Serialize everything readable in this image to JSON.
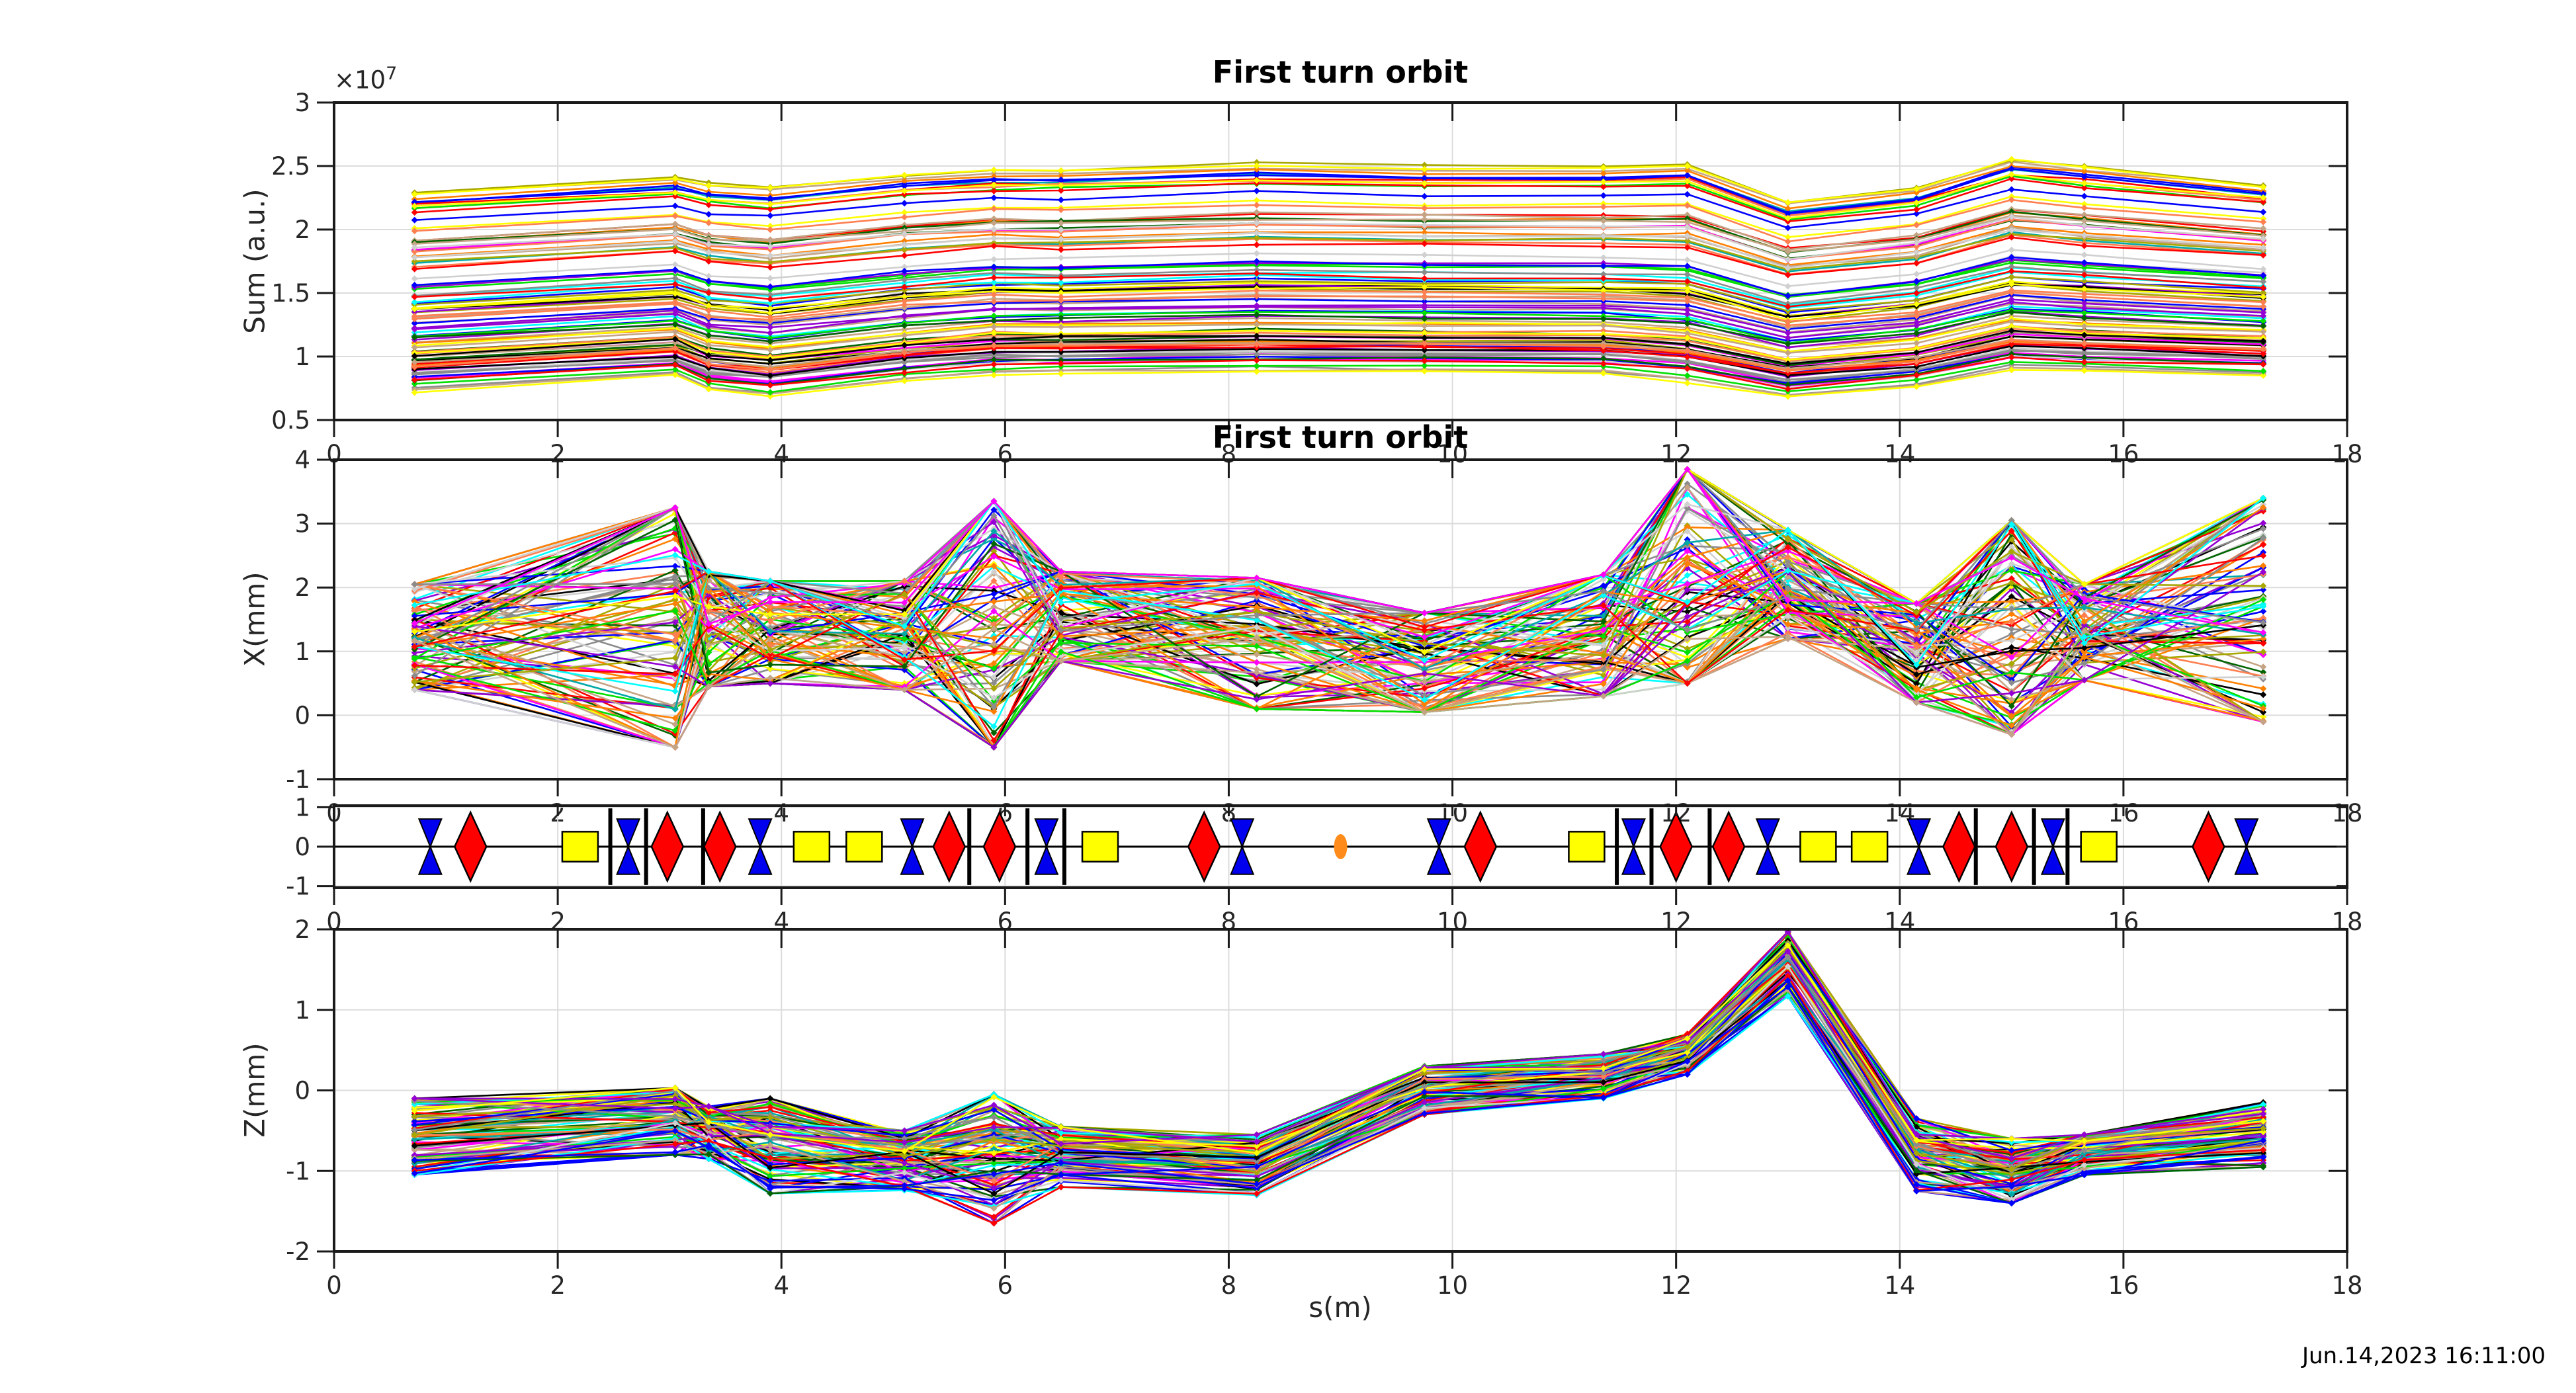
{
  "figure": {
    "background": "#ffffff",
    "timestamp": "Jun.14,2023 16:11:00",
    "text_color": "#262626",
    "palette": [
      "#0000ff",
      "#00e000",
      "#ff0000",
      "#00ffff",
      "#ff00ff",
      "#ffff00",
      "#000000",
      "#006400",
      "#a8a800",
      "#8c8c8c",
      "#c4a484",
      "#ff8000",
      "#9400d3",
      "#00a8a8",
      "#d0d0d0",
      "#ff7f50"
    ]
  },
  "chart_data": [
    {
      "id": "sum",
      "type": "line",
      "title": "First turn orbit",
      "ylabel": "Sum (a.u.)",
      "exponent_base": "×10",
      "exponent_power": "7",
      "xlim": [
        0,
        18
      ],
      "ylim": [
        0.5,
        3
      ],
      "xticks": [
        0,
        2,
        4,
        6,
        8,
        10,
        12,
        14,
        16,
        18
      ],
      "yticks": [
        0.5,
        1,
        1.5,
        2,
        2.5,
        3
      ],
      "grid": true,
      "units": "1e7 counts",
      "n_series": 100,
      "seed": 11,
      "mode": "levels",
      "level_jitter": 0.03,
      "x": [
        0.72,
        3.05,
        3.35,
        3.9,
        5.1,
        5.9,
        6.5,
        8.25,
        9.75,
        11.35,
        12.1,
        13.0,
        14.15,
        15.0,
        15.65,
        17.25
      ],
      "envelope_top": [
        2.3,
        2.42,
        2.36,
        2.33,
        2.43,
        2.47,
        2.47,
        2.52,
        2.5,
        2.5,
        2.52,
        2.22,
        2.33,
        2.56,
        2.5,
        2.36
      ],
      "envelope_bottom": [
        0.72,
        0.84,
        0.73,
        0.68,
        0.8,
        0.86,
        0.86,
        0.88,
        0.87,
        0.86,
        0.8,
        0.67,
        0.76,
        0.9,
        0.88,
        0.85
      ]
    },
    {
      "id": "xplot",
      "type": "line",
      "title": "First turn orbit",
      "ylabel": "X(mm)",
      "xlim": [
        0,
        18
      ],
      "ylim": [
        -1,
        4
      ],
      "xticks": [
        0,
        2,
        4,
        6,
        8,
        10,
        12,
        14,
        16,
        18
      ],
      "yticks": [
        -1,
        0,
        1,
        2,
        3,
        4
      ],
      "grid": true,
      "n_series": 100,
      "seed": 22,
      "mode": "band",
      "band_spread": 1.1,
      "x": [
        0.72,
        3.05,
        3.35,
        3.9,
        5.1,
        5.9,
        6.5,
        8.25,
        9.75,
        11.35,
        12.1,
        13.0,
        14.15,
        15.0,
        15.65,
        17.25
      ],
      "envelope_top": [
        2.05,
        3.25,
        2.25,
        2.1,
        2.1,
        3.35,
        2.25,
        2.15,
        1.6,
        2.2,
        3.85,
        2.9,
        1.75,
        3.05,
        2.05,
        3.4
      ],
      "envelope_bottom": [
        0.4,
        -0.5,
        0.45,
        0.5,
        0.4,
        -0.5,
        0.85,
        0.1,
        0.05,
        0.3,
        0.5,
        1.2,
        0.2,
        -0.3,
        0.55,
        -0.1
      ]
    },
    {
      "id": "lattice",
      "type": "lattice",
      "xlim": [
        0,
        18
      ],
      "ylim": [
        -1.04,
        1.04
      ],
      "xticks": [
        0,
        2,
        4,
        6,
        8,
        10,
        12,
        14,
        16,
        18
      ],
      "yticks": [
        -1,
        0,
        1
      ],
      "element_colors": {
        "quadrupole": "#0000ee",
        "dipole": "#ff0000",
        "sextupole": "#ffff00",
        "bpm_marker": "#000000",
        "rf_marker": "#ff8c1a"
      },
      "quadrupoles_s": [
        0.86,
        2.63,
        3.81,
        5.17,
        6.37,
        8.12,
        9.88,
        11.62,
        12.82,
        14.17,
        15.37,
        17.1
      ],
      "dipoles_s": [
        1.22,
        2.98,
        3.45,
        5.5,
        5.95,
        7.78,
        10.25,
        12.0,
        12.47,
        14.53,
        15.0,
        16.76
      ],
      "sextupoles_s": [
        2.2,
        4.27,
        4.74,
        6.85,
        11.2,
        13.27,
        13.73,
        15.78
      ],
      "markers_s": [
        2.47,
        2.79,
        3.3,
        5.68,
        6.2,
        6.53,
        11.47,
        11.78,
        12.3,
        14.68,
        15.2,
        15.5
      ],
      "rf_s": [
        9.0
      ]
    },
    {
      "id": "zplot",
      "type": "line",
      "ylabel": "Z(mm)",
      "xlabel": "s(m)",
      "xlim": [
        0,
        18
      ],
      "ylim": [
        -2,
        2
      ],
      "xticks": [
        0,
        2,
        4,
        6,
        8,
        10,
        12,
        14,
        16,
        18
      ],
      "yticks": [
        -2,
        -1,
        0,
        1,
        2
      ],
      "grid": true,
      "n_series": 100,
      "seed": 33,
      "mode": "band",
      "band_spread": 0.5,
      "x": [
        0.72,
        3.05,
        3.35,
        3.9,
        5.1,
        5.9,
        6.5,
        8.25,
        9.75,
        11.35,
        12.1,
        13.0,
        14.15,
        15.0,
        15.65,
        17.25
      ],
      "envelope_top": [
        -0.1,
        0.03,
        -0.2,
        -0.1,
        -0.5,
        -0.05,
        -0.45,
        -0.55,
        0.3,
        0.45,
        0.7,
        1.97,
        -0.35,
        -0.6,
        -0.55,
        -0.15
      ],
      "envelope_bottom": [
        -1.05,
        -0.8,
        -0.85,
        -1.28,
        -1.25,
        -1.65,
        -1.2,
        -1.3,
        -0.3,
        -0.1,
        0.2,
        1.17,
        -1.25,
        -1.4,
        -1.05,
        -0.95
      ]
    }
  ]
}
